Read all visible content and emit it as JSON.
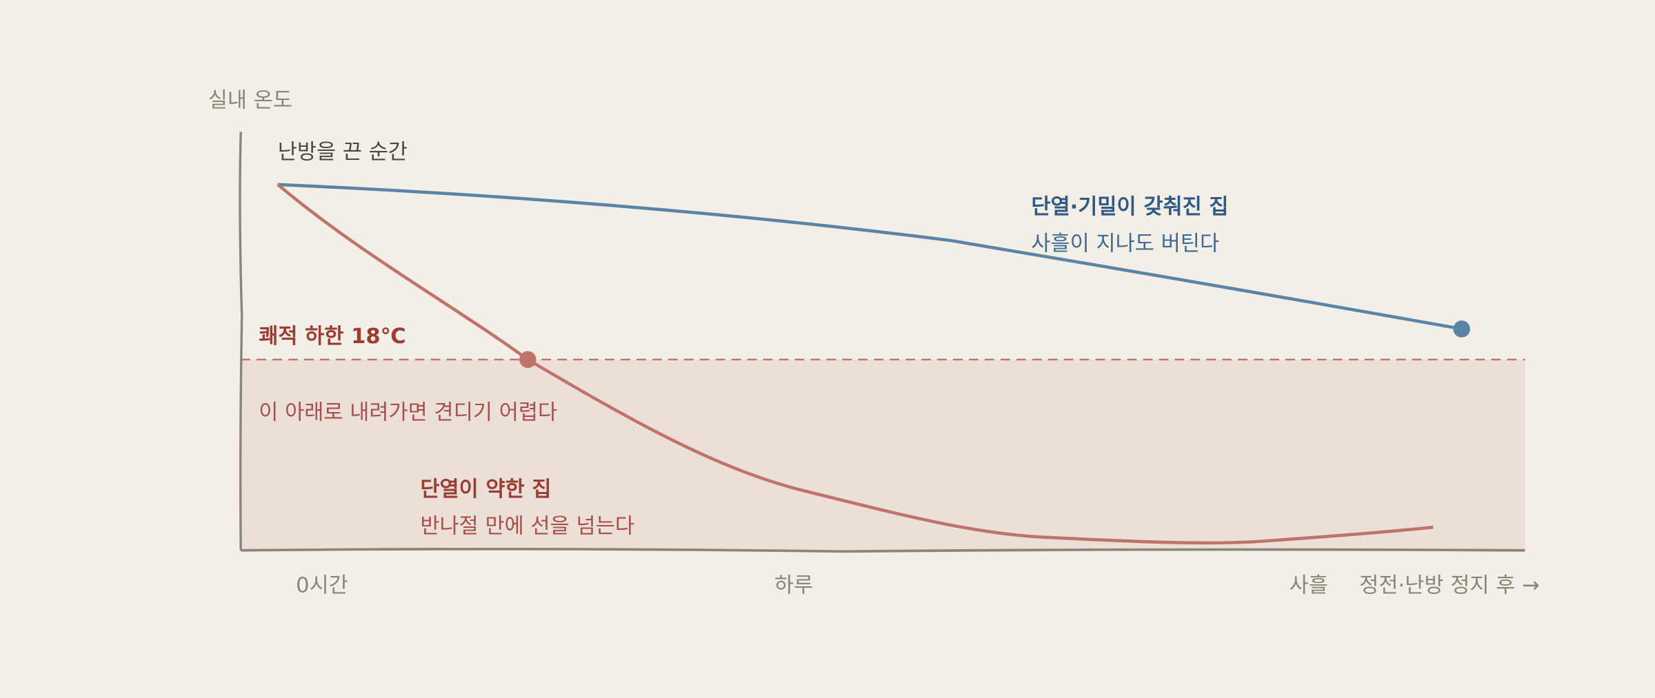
{
  "y_axis_label": "실내 온도",
  "start_label": "난방을 끈 순간",
  "threshold": {
    "label": "쾌적 하한 18℃",
    "note": "이 아래로 내려가면 견디기 어렵다"
  },
  "series": [
    {
      "name": "단열·기밀이 갖춰진 집",
      "note": "사흘이 지나도 버틴다"
    },
    {
      "name": "단열이 약한 집",
      "note": "반나절 만에 선을 넘는다"
    }
  ],
  "x_labels": [
    "0시간",
    "하루",
    "사흘"
  ],
  "x_axis_label": "정전·난방 정지 후 →"
}
